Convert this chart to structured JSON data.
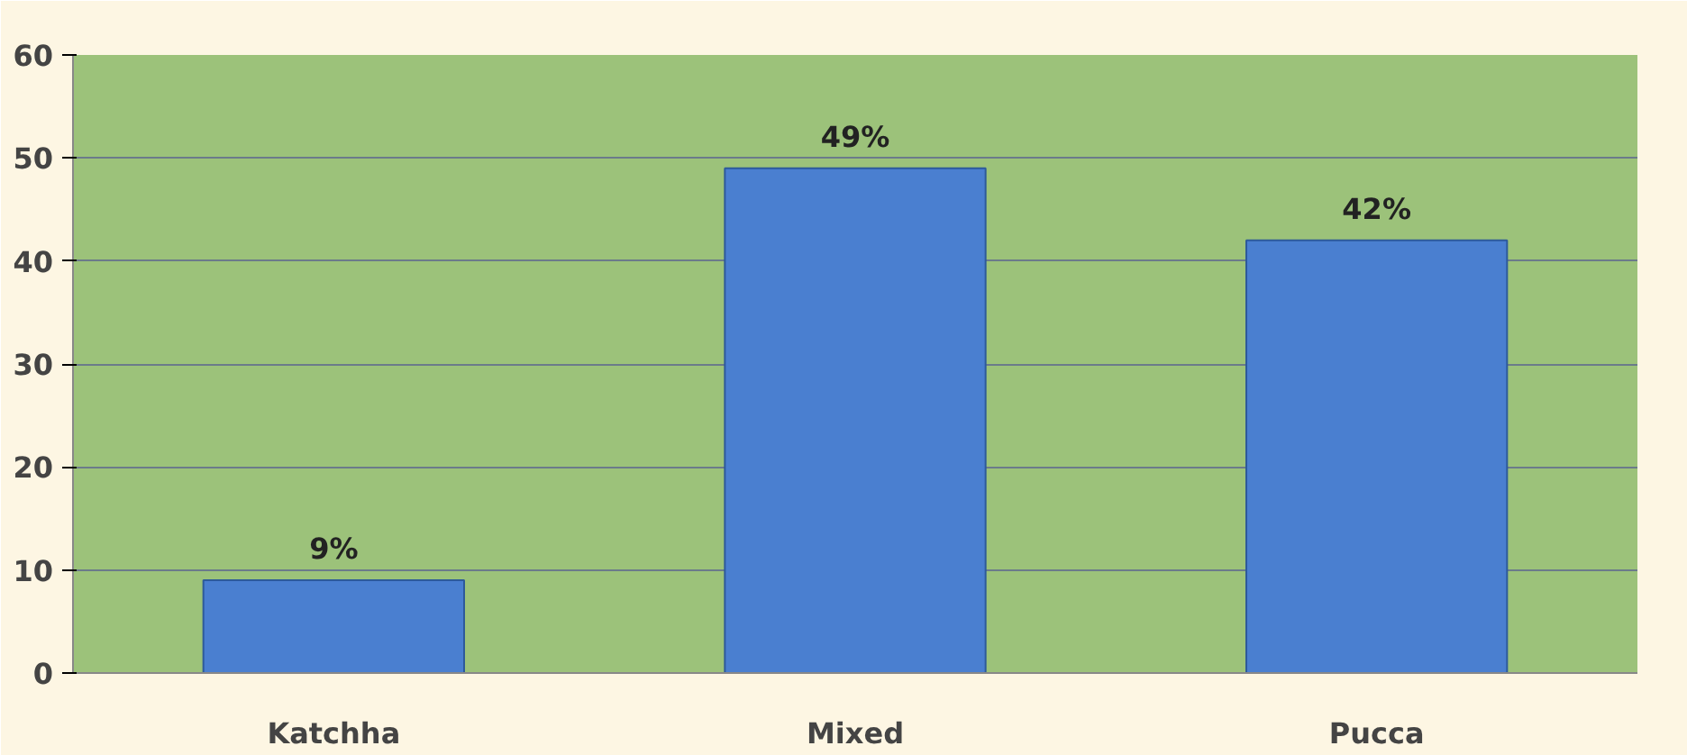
{
  "chart_data": {
    "type": "bar",
    "categories": [
      "Katchha",
      "Mixed",
      "Pucca"
    ],
    "values": [
      9,
      49,
      42
    ],
    "value_labels": [
      "9%",
      "49%",
      "42%"
    ],
    "color": "#4a7fd0",
    "ylim": [
      0,
      60
    ],
    "yticks": [
      0,
      10,
      20,
      30,
      40,
      50,
      60
    ],
    "grid": "y"
  }
}
